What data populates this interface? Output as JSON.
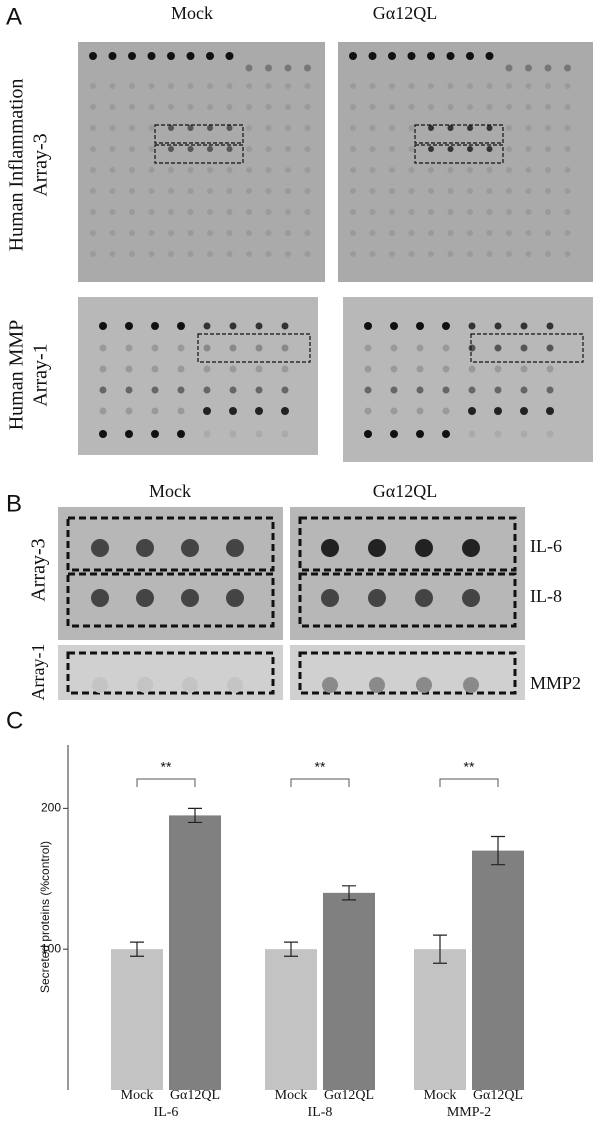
{
  "panel_labels": [
    "A",
    "B",
    "C"
  ],
  "panel_a": {
    "columns": [
      "Mock",
      "Gα12QL"
    ],
    "rows": [
      [
        "Human Inflammation",
        "Array-3"
      ],
      [
        "Human MMP",
        "Array-1"
      ]
    ]
  },
  "panel_b": {
    "columns": [
      "Mock",
      "Gα12QL"
    ],
    "rows": [
      "Array-3",
      "Array-1"
    ],
    "spots": [
      "IL-6",
      "IL-8",
      "MMP2"
    ]
  },
  "chart_data": {
    "type": "bar",
    "y_label": "Secreted proteins (%control)",
    "categories": [
      "IL-6",
      "IL-8",
      "MMP-2"
    ],
    "series": [
      {
        "name": "Mock",
        "color": "#c3c3c3",
        "values": [
          100,
          100,
          100
        ],
        "errors": [
          5,
          5,
          10
        ]
      },
      {
        "name": "Gα12QL",
        "color": "#808080",
        "values": [
          195,
          140,
          170
        ],
        "errors": [
          5,
          5,
          10
        ]
      }
    ],
    "annotations": [
      "**",
      "**",
      "**"
    ],
    "ylim": [
      0,
      245
    ],
    "yticks": [
      100,
      200
    ]
  }
}
